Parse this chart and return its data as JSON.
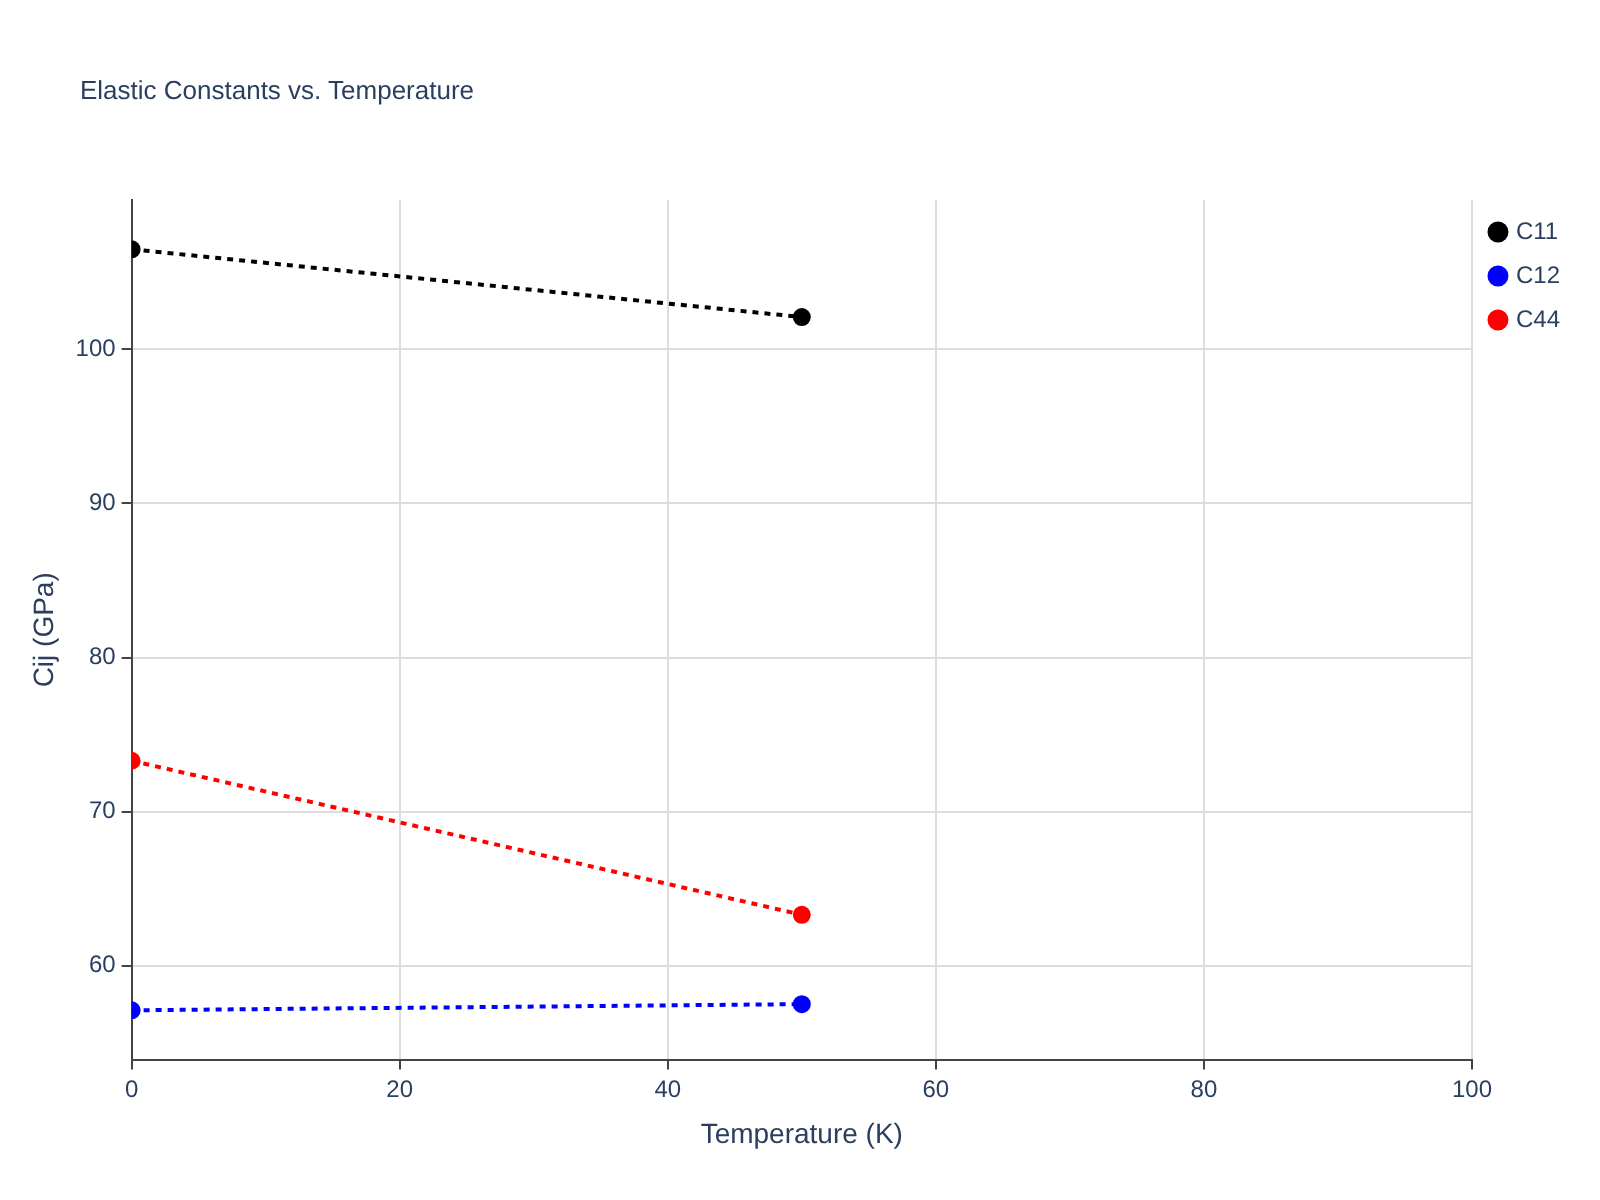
{
  "chart_data": {
    "type": "line",
    "title": "Elastic Constants vs. Temperature",
    "xlabel": "Temperature (K)",
    "ylabel": "Cij (GPa)",
    "x": [
      0,
      50
    ],
    "series": [
      {
        "name": "C11",
        "color": "#000000",
        "values": [
          106.5,
          102.1
        ]
      },
      {
        "name": "C12",
        "color": "#0000ff",
        "values": [
          57.1,
          57.5
        ]
      },
      {
        "name": "C44",
        "color": "#ff0000",
        "values": [
          73.3,
          63.3
        ]
      }
    ],
    "xlim": [
      0,
      100
    ],
    "xticks": [
      0,
      20,
      40,
      60,
      80,
      100
    ],
    "ylim": [
      53.9,
      109.7
    ],
    "yticks": [
      60,
      70,
      80,
      90,
      100
    ],
    "grid": true,
    "legend": "top right",
    "marker": "circle",
    "line_style": "dotted"
  }
}
